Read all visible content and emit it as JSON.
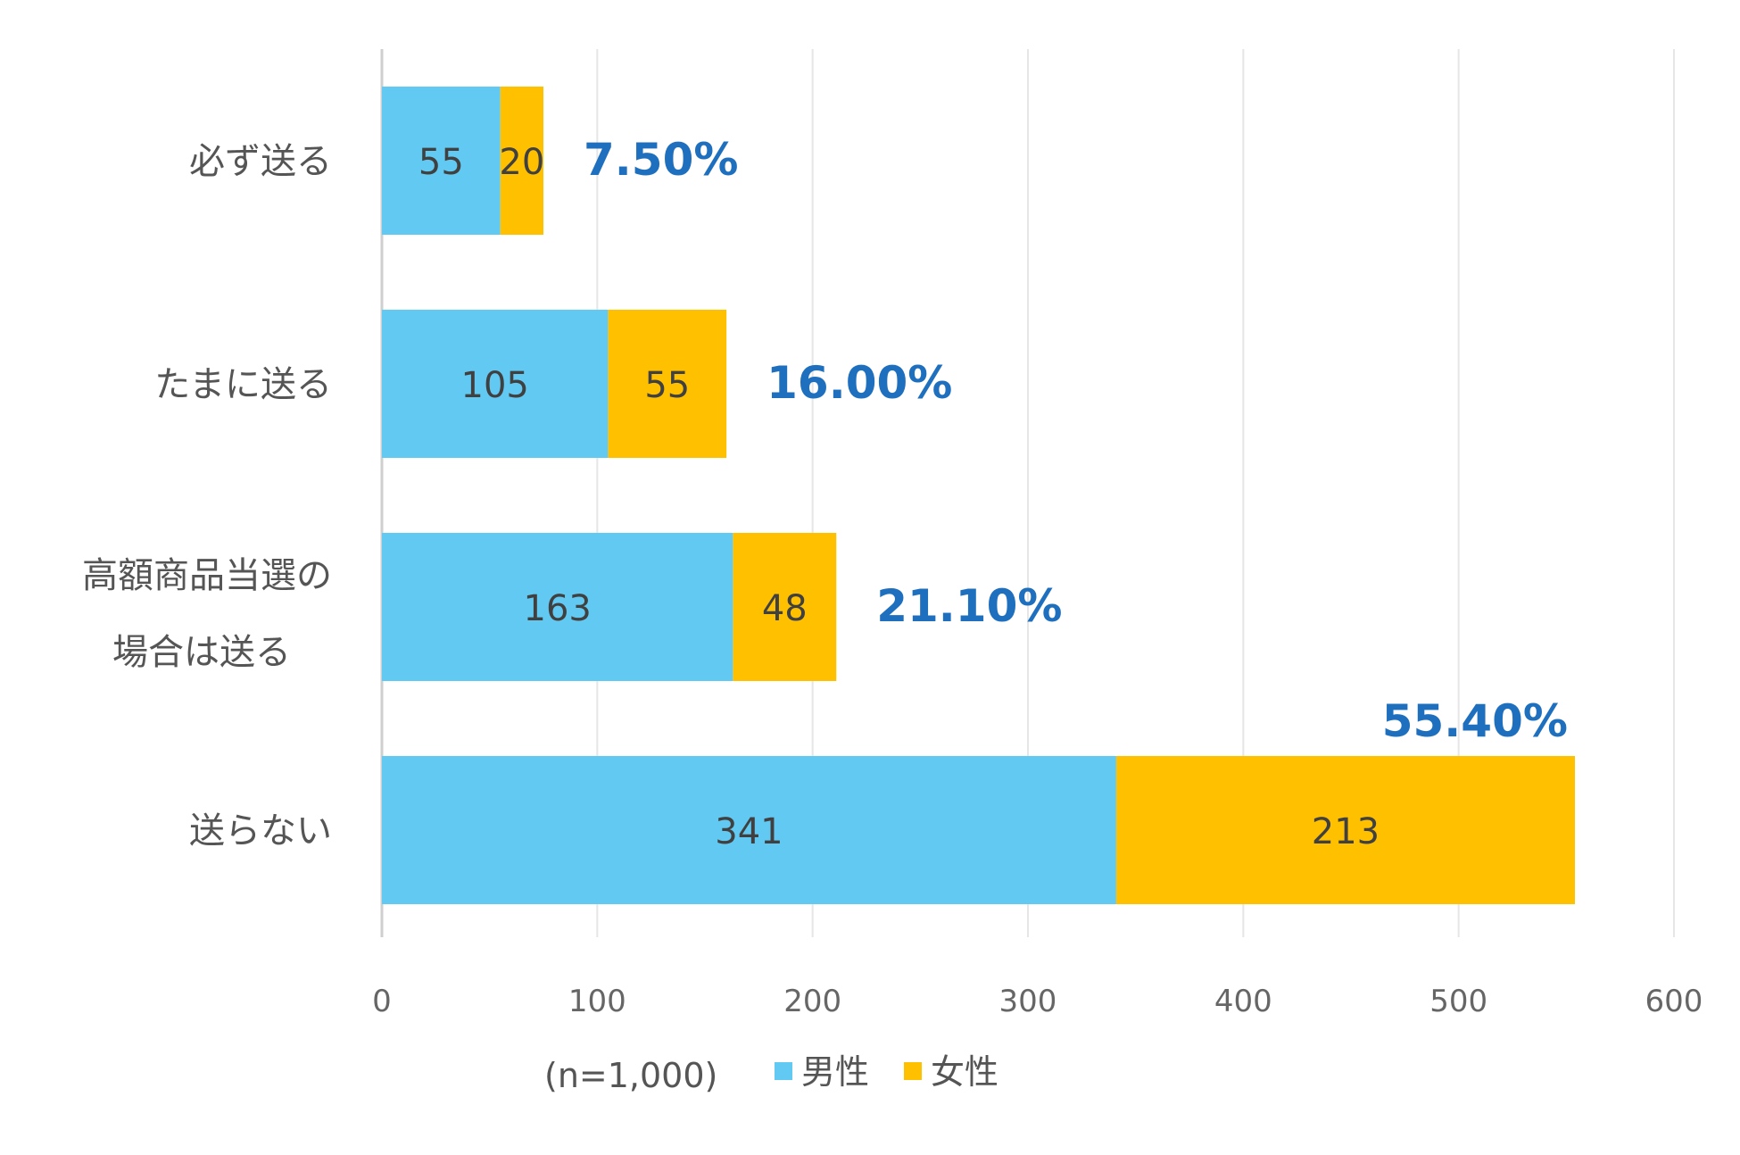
{
  "colors": {
    "male": "#62caf2",
    "female": "#ffc000",
    "percent": "#1f6fbf"
  },
  "chart_data": {
    "type": "bar",
    "orientation": "horizontal",
    "stacked": true,
    "categories": [
      [
        "必ず送る"
      ],
      [
        "たまに送る"
      ],
      [
        "高額商品当選の",
        "場合は送る"
      ],
      [
        "送らない"
      ]
    ],
    "series": [
      {
        "name": "男性",
        "values": [
          55,
          105,
          163,
          341
        ]
      },
      {
        "name": "女性",
        "values": [
          20,
          55,
          48,
          213
        ]
      }
    ],
    "percentages": [
      "7.50%",
      "16.00%",
      "21.10%",
      "55.40%"
    ],
    "xlim": [
      0,
      600
    ],
    "xticks": [
      "0",
      "100",
      "200",
      "300",
      "400",
      "500",
      "600"
    ],
    "grid": true,
    "note": "(n=1,000)",
    "legend_position": "bottom"
  }
}
